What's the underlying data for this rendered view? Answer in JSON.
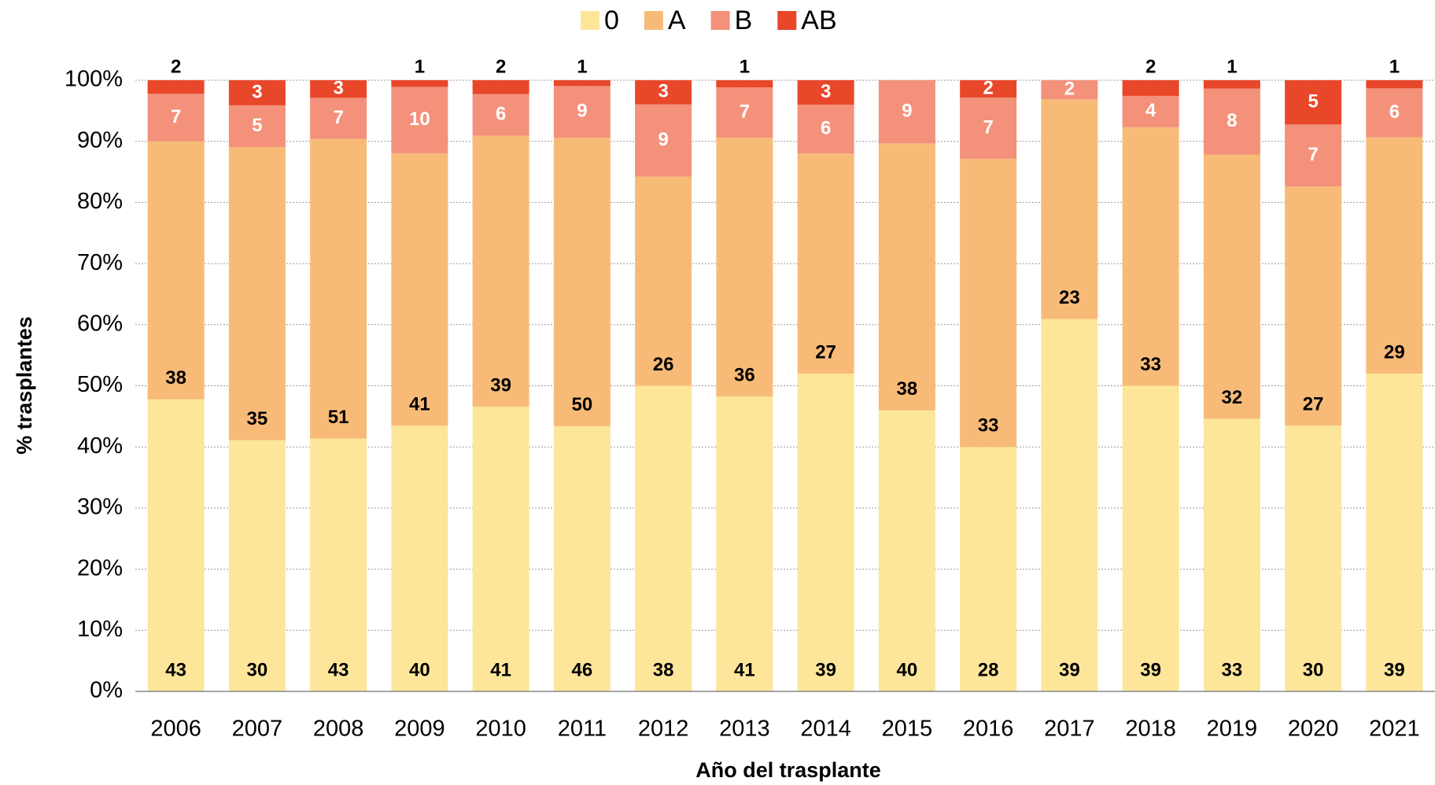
{
  "chart_data": {
    "type": "bar",
    "stacking": "percent",
    "x_label": "Año del trasplante",
    "y_label": "% trasplantes",
    "categories": [
      "2006",
      "2007",
      "2008",
      "2009",
      "2010",
      "2011",
      "2012",
      "2013",
      "2014",
      "2015",
      "2016",
      "2017",
      "2018",
      "2019",
      "2020",
      "2021"
    ],
    "series": [
      {
        "name": "0",
        "color": "#fde69a",
        "label_color": "#000000",
        "values": [
          43,
          30,
          43,
          40,
          41,
          46,
          38,
          41,
          39,
          40,
          28,
          39,
          39,
          33,
          30,
          39
        ]
      },
      {
        "name": "A",
        "color": "#f8bb77",
        "label_color": "#000000",
        "values": [
          38,
          35,
          51,
          41,
          39,
          50,
          26,
          36,
          27,
          38,
          33,
          23,
          33,
          32,
          27,
          29
        ]
      },
      {
        "name": "B",
        "color": "#f3917b",
        "label_color": "#ffffff",
        "values": [
          7,
          5,
          7,
          10,
          6,
          9,
          9,
          7,
          6,
          9,
          7,
          2,
          4,
          8,
          7,
          6
        ]
      },
      {
        "name": "AB",
        "color": "#e8472a",
        "label_color": "#ffffff",
        "values": [
          2,
          3,
          3,
          1,
          2,
          1,
          3,
          1,
          3,
          null,
          2,
          null,
          2,
          1,
          5,
          1
        ]
      }
    ],
    "ylim": [
      0,
      100
    ],
    "yticks": [
      {
        "value": 0,
        "label": "0%"
      },
      {
        "value": 10,
        "label": "10%"
      },
      {
        "value": 20,
        "label": "20%"
      },
      {
        "value": 30,
        "label": "30%"
      },
      {
        "value": 40,
        "label": "40%"
      },
      {
        "value": 50,
        "label": "50%"
      },
      {
        "value": 60,
        "label": "60%"
      },
      {
        "value": 70,
        "label": "70%"
      },
      {
        "value": 80,
        "label": "80%"
      },
      {
        "value": 90,
        "label": "90%"
      },
      {
        "value": 100,
        "label": "100%"
      }
    ],
    "grid": true
  }
}
